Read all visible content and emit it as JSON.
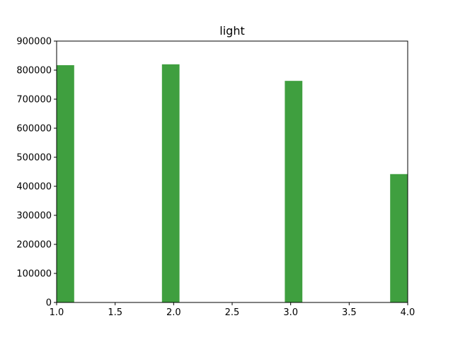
{
  "chart_data": {
    "type": "bar",
    "title": "light",
    "xlabel": "",
    "ylabel": "",
    "xlim": [
      1.0,
      4.0
    ],
    "ylim": [
      0,
      900000
    ],
    "x_ticks": [
      1.0,
      1.5,
      2.0,
      2.5,
      3.0,
      3.5,
      4.0
    ],
    "x_tick_labels": [
      "1.0",
      "1.5",
      "2.0",
      "2.5",
      "3.0",
      "3.5",
      "4.0"
    ],
    "y_ticks": [
      0,
      100000,
      200000,
      300000,
      400000,
      500000,
      600000,
      700000,
      800000,
      900000
    ],
    "y_tick_labels": [
      "0",
      "100000",
      "200000",
      "300000",
      "400000",
      "500000",
      "600000",
      "700000",
      "800000",
      "900000"
    ],
    "bars": [
      {
        "x_start": 1.0,
        "x_end": 1.15,
        "value": 817000
      },
      {
        "x_start": 1.9,
        "x_end": 2.05,
        "value": 820000
      },
      {
        "x_start": 2.95,
        "x_end": 3.1,
        "value": 763000
      },
      {
        "x_start": 3.85,
        "x_end": 4.0,
        "value": 442000
      }
    ],
    "bar_color": "#3f9f3f",
    "grid": false,
    "legend": "none"
  }
}
